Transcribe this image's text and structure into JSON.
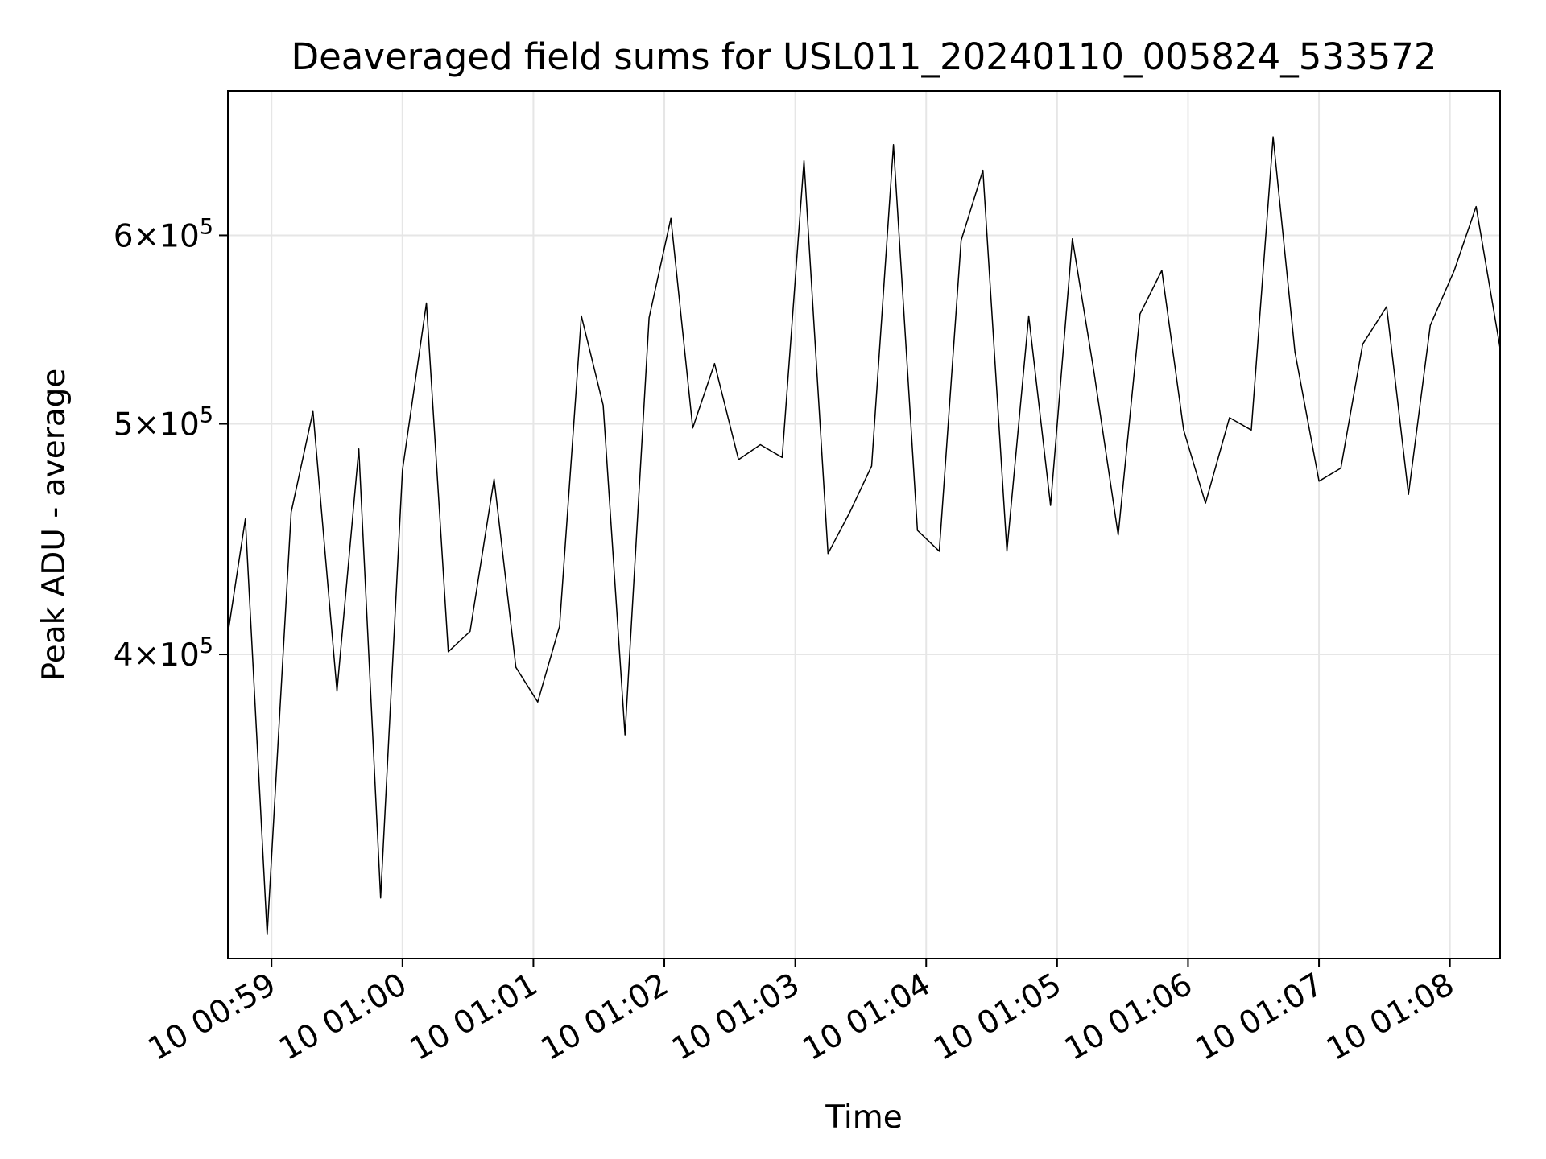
{
  "chart_data": {
    "type": "line",
    "title": "Deaveraged field sums for USL011_20240110_005824_533572",
    "xlabel": "Time",
    "ylabel": "Peak ADU - average",
    "x_scale": "time",
    "y_scale": "log",
    "grid": true,
    "line_color": "#000000",
    "grid_color": "#e6e6e6",
    "x_ticks": [
      "10 00:59",
      "10 01:00",
      "10 01:01",
      "10 01:02",
      "10 01:03",
      "10 01:04",
      "10 01:05",
      "10 01:06",
      "10 01:07",
      "10 01:08"
    ],
    "y_ticks": [
      {
        "value": 400000,
        "mantissa": "4",
        "base": "10",
        "exp": "5"
      },
      {
        "value": 500000,
        "mantissa": "5",
        "base": "10",
        "exp": "5"
      },
      {
        "value": 600000,
        "mantissa": "6",
        "base": "10",
        "exp": "5"
      }
    ],
    "xlim": [
      "2024-01-10 00:58:40",
      "2024-01-10 01:08:23"
    ],
    "ylim": [
      298000,
      690000
    ],
    "series": [
      {
        "x": [
          "2024-01-10 00:58:40",
          "2024-01-10 00:58:48",
          "2024-01-10 00:58:58",
          "2024-01-10 00:59:09",
          "2024-01-10 00:59:19",
          "2024-01-10 00:59:30",
          "2024-01-10 00:59:40",
          "2024-01-10 00:59:50",
          "2024-01-10 01:00:00",
          "2024-01-10 01:00:11",
          "2024-01-10 01:00:21",
          "2024-01-10 01:00:31",
          "2024-01-10 01:00:42",
          "2024-01-10 01:00:52",
          "2024-01-10 01:01:02",
          "2024-01-10 01:01:12",
          "2024-01-10 01:01:22",
          "2024-01-10 01:01:32",
          "2024-01-10 01:01:42",
          "2024-01-10 01:01:53",
          "2024-01-10 01:02:03",
          "2024-01-10 01:02:13",
          "2024-01-10 01:02:23",
          "2024-01-10 01:02:34",
          "2024-01-10 01:02:44",
          "2024-01-10 01:02:54",
          "2024-01-10 01:03:04",
          "2024-01-10 01:03:15",
          "2024-01-10 01:03:25",
          "2024-01-10 01:03:35",
          "2024-01-10 01:03:45",
          "2024-01-10 01:03:56",
          "2024-01-10 01:04:06",
          "2024-01-10 01:04:16",
          "2024-01-10 01:04:26",
          "2024-01-10 01:04:37",
          "2024-01-10 01:04:47",
          "2024-01-10 01:04:57",
          "2024-01-10 01:05:07",
          "2024-01-10 01:05:17",
          "2024-01-10 01:05:28",
          "2024-01-10 01:05:38",
          "2024-01-10 01:05:48",
          "2024-01-10 01:05:58",
          "2024-01-10 01:06:08",
          "2024-01-10 01:06:19",
          "2024-01-10 01:06:29",
          "2024-01-10 01:06:39",
          "2024-01-10 01:06:49",
          "2024-01-10 01:07:00",
          "2024-01-10 01:07:10",
          "2024-01-10 01:07:20",
          "2024-01-10 01:07:31",
          "2024-01-10 01:07:41",
          "2024-01-10 01:07:51",
          "2024-01-10 01:08:02",
          "2024-01-10 01:08:12",
          "2024-01-10 01:08:23"
        ],
        "y": [
          408000,
          456000,
          305000,
          459000,
          506000,
          386000,
          488000,
          316000,
          478000,
          562000,
          401000,
          409000,
          474000,
          395000,
          382000,
          411000,
          555000,
          509000,
          370000,
          554000,
          610000,
          498000,
          530000,
          483000,
          490000,
          484000,
          645000,
          441000,
          459000,
          480000,
          655000,
          451000,
          442000,
          597000,
          639000,
          442000,
          555000,
          462000,
          598000,
          525000,
          449000,
          556000,
          580000,
          497000,
          463000,
          503000,
          497000,
          660000,
          536000,
          473000,
          479000,
          540000,
          560000,
          467000,
          550000,
          580000,
          617000,
          538000
        ]
      }
    ]
  }
}
